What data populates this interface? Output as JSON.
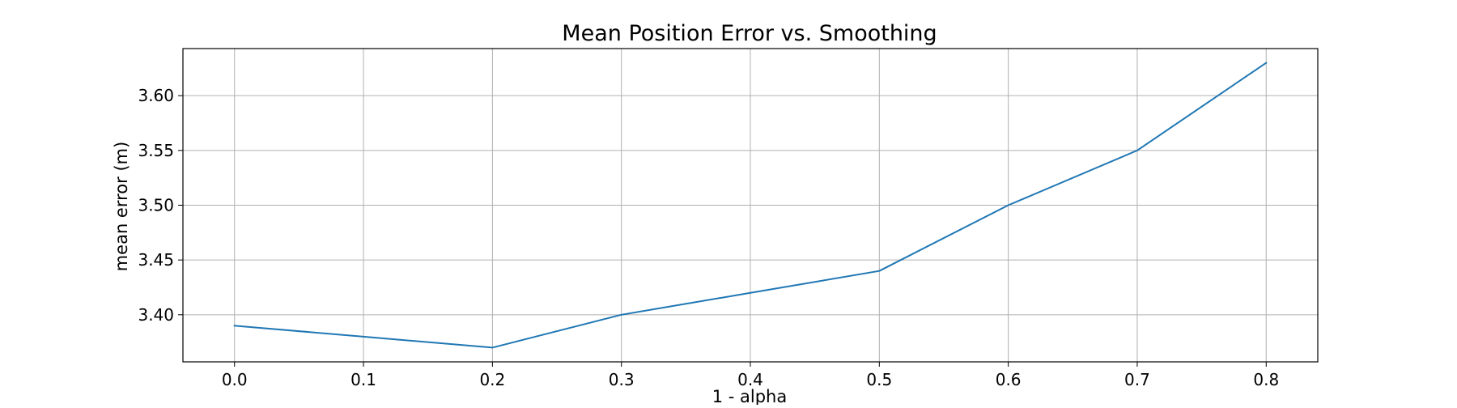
{
  "chart_data": {
    "type": "line",
    "title": "Mean Position Error vs. Smoothing",
    "xlabel": "1 - alpha",
    "ylabel": "mean error (m)",
    "x_ticks": [
      "0.0",
      "0.1",
      "0.2",
      "0.3",
      "0.4",
      "0.5",
      "0.6",
      "0.7",
      "0.8"
    ],
    "y_ticks": [
      "3.40",
      "3.45",
      "3.50",
      "3.55",
      "3.60"
    ],
    "xlim": [
      -0.04,
      0.84
    ],
    "ylim": [
      3.357,
      3.643
    ],
    "grid": true,
    "series": [
      {
        "color": "#1f77b4",
        "x": [
          0.0,
          0.1,
          0.2,
          0.3,
          0.4,
          0.5,
          0.6,
          0.7,
          0.8
        ],
        "y": [
          3.39,
          3.38,
          3.37,
          3.4,
          3.42,
          3.44,
          3.5,
          3.55,
          3.63
        ]
      }
    ]
  }
}
